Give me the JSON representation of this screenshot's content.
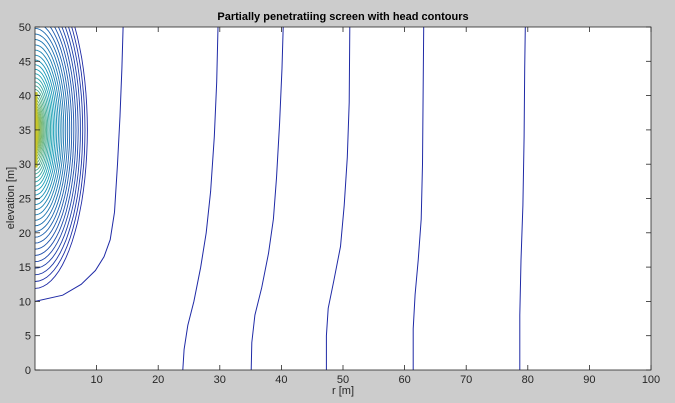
{
  "chart_data": {
    "type": "contour",
    "title": "Partially penetratiing screen with head contours",
    "xlabel": "r [m]",
    "ylabel": "elevation [m]",
    "xlim": [
      0,
      100
    ],
    "ylim": [
      0,
      50
    ],
    "xticks": [
      10,
      20,
      30,
      40,
      50,
      60,
      70,
      80,
      90,
      100
    ],
    "yticks": [
      0,
      5,
      10,
      15,
      20,
      25,
      30,
      35,
      40,
      45,
      50
    ],
    "grid": false,
    "screen": {
      "r": 0,
      "z_top": 40.5,
      "z_bottom": 29.5
    },
    "colormap": "parula",
    "colors": {
      "low": "#1f2aa6",
      "mid": "#1aa2b8",
      "high": "#c9c62a",
      "background": "#cccccc",
      "plot_area": "#ffffff"
    },
    "contours": [
      {
        "r_base": 10.2,
        "points": [
          [
            0,
            10
          ],
          [
            4.5,
            10.9
          ],
          [
            7.5,
            12.5
          ],
          [
            9.8,
            14.5
          ],
          [
            11.2,
            16.5
          ],
          [
            12.2,
            19
          ],
          [
            12.9,
            23
          ],
          [
            13.4,
            30
          ],
          [
            13.8,
            37
          ],
          [
            14.1,
            44
          ],
          [
            14.3,
            50
          ]
        ]
      },
      {
        "r_base": 23.8,
        "points": [
          [
            24,
            0
          ],
          [
            24.2,
            3
          ],
          [
            24.8,
            6.5
          ],
          [
            25.8,
            10
          ],
          [
            26.9,
            15
          ],
          [
            27.8,
            20
          ],
          [
            28.5,
            26
          ],
          [
            29.1,
            34
          ],
          [
            29.5,
            42
          ],
          [
            29.7,
            50
          ]
        ]
      },
      {
        "r_base": 34.7,
        "points": [
          [
            35.1,
            0
          ],
          [
            35.2,
            4
          ],
          [
            35.7,
            8
          ],
          [
            36.8,
            12
          ],
          [
            37.9,
            17
          ],
          [
            38.7,
            22
          ],
          [
            39.2,
            28
          ],
          [
            39.7,
            36
          ],
          [
            40.1,
            44
          ],
          [
            40.3,
            50
          ]
        ]
      },
      {
        "r_base": 47.2,
        "points": [
          [
            47.3,
            0
          ],
          [
            47.3,
            5
          ],
          [
            47.6,
            9
          ],
          [
            48.5,
            13
          ],
          [
            49.6,
            18
          ],
          [
            50.2,
            24
          ],
          [
            50.7,
            31
          ],
          [
            51.0,
            39
          ],
          [
            51.1,
            50
          ]
        ]
      },
      {
        "r_base": 61.3,
        "points": [
          [
            61.4,
            0
          ],
          [
            61.4,
            6
          ],
          [
            61.7,
            11
          ],
          [
            62.2,
            16
          ],
          [
            62.7,
            22
          ],
          [
            62.9,
            30
          ],
          [
            63.0,
            40
          ],
          [
            63.1,
            50
          ]
        ]
      },
      {
        "r_base": 78.5,
        "points": [
          [
            78.7,
            0
          ],
          [
            78.7,
            8
          ],
          [
            78.9,
            16
          ],
          [
            79.2,
            24
          ],
          [
            79.4,
            34
          ],
          [
            79.5,
            44
          ],
          [
            79.6,
            50
          ]
        ]
      }
    ]
  }
}
